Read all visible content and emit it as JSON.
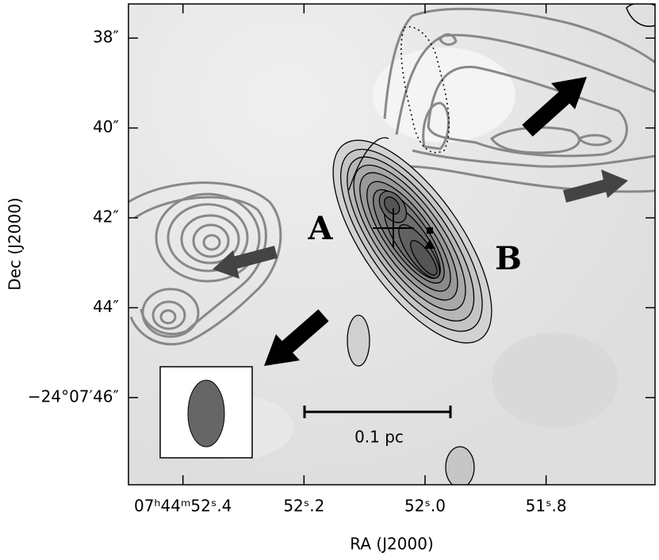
{
  "chart_data": {
    "type": "image",
    "xlabel": "RA (J2000)",
    "ylabel": "Dec (J2000)",
    "xlim": [
      52.49,
      51.62
    ],
    "xticks": [
      {
        "value": 52.4,
        "label": "07ʰ44ᵐ52ˢ.4"
      },
      {
        "value": 52.2,
        "label": "52ˢ.2"
      },
      {
        "value": 52.0,
        "label": "52ˢ.0"
      },
      {
        "value": 51.8,
        "label": "51ˢ.8"
      }
    ],
    "ylim": [
      37.24,
      47.94
    ],
    "yticks": [
      {
        "value": 38,
        "label": "38″"
      },
      {
        "value": 40,
        "label": "40″"
      },
      {
        "value": 42,
        "label": "42″"
      },
      {
        "value": 44,
        "label": "44″"
      },
      {
        "value": 46,
        "label": "−24°07′46″"
      }
    ],
    "annotations": [
      "A",
      "B",
      "0.1 pc"
    ]
  }
}
